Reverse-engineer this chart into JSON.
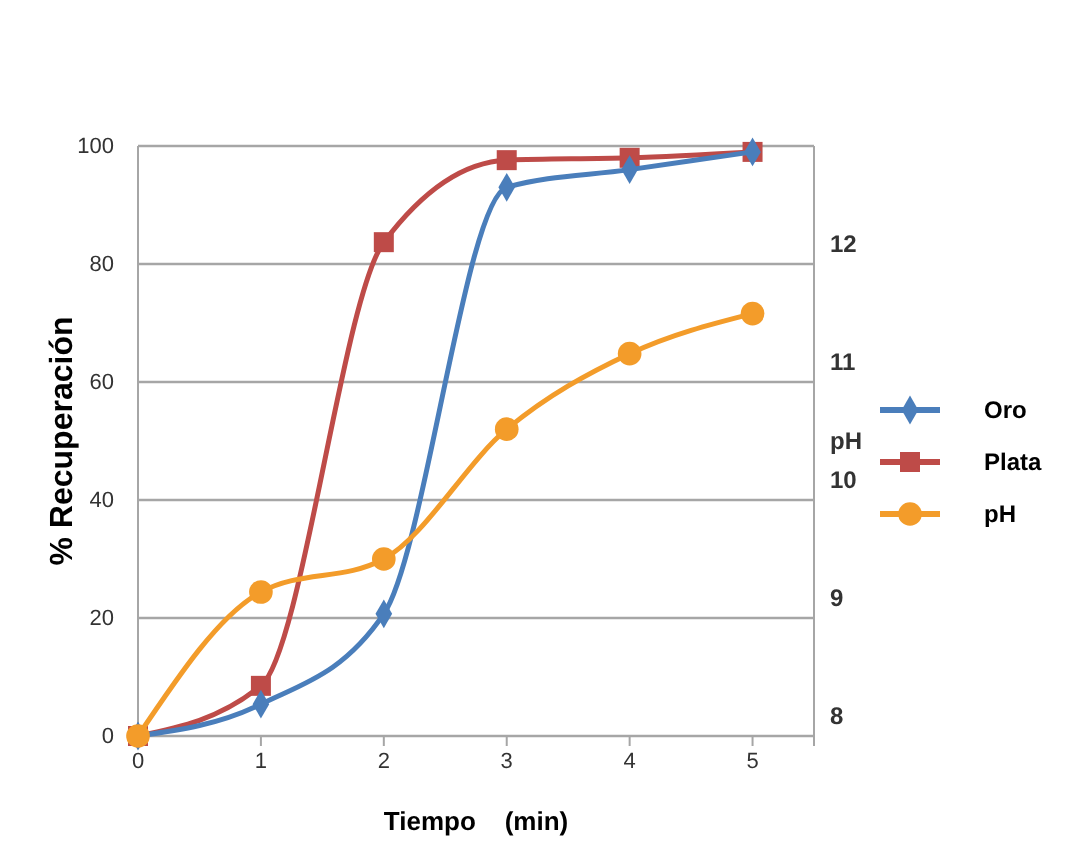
{
  "chart_data": {
    "type": "line",
    "xlabel": "Tiempo    (min)",
    "ylabel": "% Recuperación",
    "y2label": "pH",
    "x": [
      0,
      1,
      2,
      3,
      4,
      5
    ],
    "xlim": [
      0,
      5.5
    ],
    "xticks": [
      0,
      1,
      2,
      3,
      4,
      5
    ],
    "ylim": [
      0,
      100
    ],
    "yticks": [
      0,
      20,
      40,
      60,
      80,
      100
    ],
    "y2lim": [
      8,
      13
    ],
    "y2ticks": [
      8,
      9,
      10,
      11,
      12
    ],
    "grid": "y",
    "legend": "right",
    "series": [
      {
        "name": "Oro",
        "color": "#4a7ebb",
        "marker": "diamond",
        "values": [
          0,
          5.4,
          20.7,
          93,
          96,
          99
        ]
      },
      {
        "name": "Plata",
        "color": "#be4b48",
        "marker": "square",
        "values": [
          0,
          8.5,
          83.7,
          97.6,
          98,
          99
        ]
      },
      {
        "name": "pH",
        "color": "#f39c2a",
        "marker": "circle",
        "axis": "y2",
        "values": [
          8.0,
          9.22,
          9.5,
          10.6,
          11.24,
          11.58
        ]
      }
    ]
  }
}
